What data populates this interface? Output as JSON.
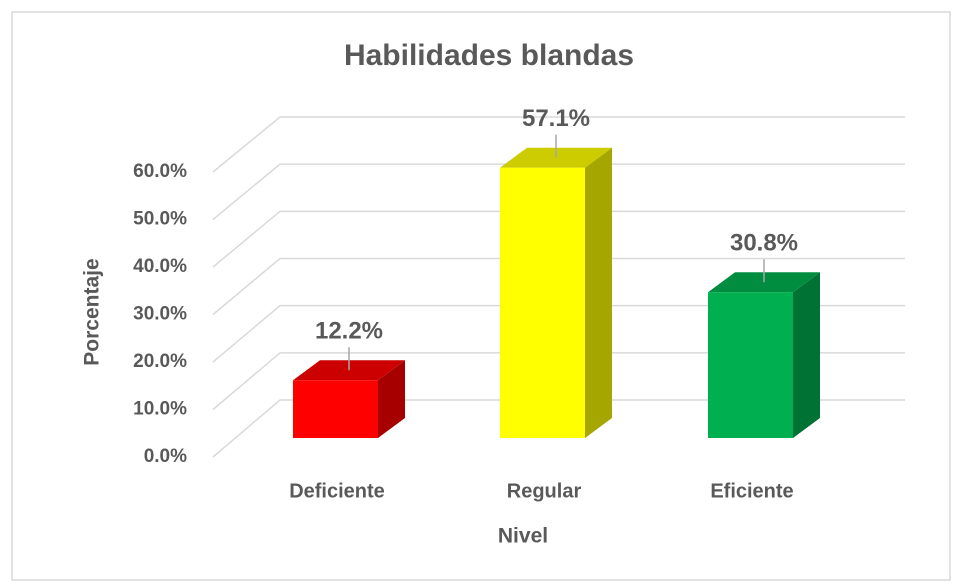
{
  "chart_data": {
    "type": "bar3d",
    "title": "Habilidades blandas",
    "x_label": "Nivel",
    "y_label": "Porcentaje",
    "categories": [
      "Deficiente",
      "Regular",
      "Eficiente"
    ],
    "values": [
      12.2,
      57.1,
      30.8
    ],
    "value_labels": [
      "12.2%",
      "57.1%",
      "30.8%"
    ],
    "colors": [
      "#ff0000",
      "#ffff00",
      "#00b050"
    ],
    "ylim": [
      0,
      60
    ],
    "yticks": [
      {
        "value": 0,
        "label": "0.0%"
      },
      {
        "value": 10,
        "label": "10.0%"
      },
      {
        "value": 20,
        "label": "20.0%"
      },
      {
        "value": 30,
        "label": "30.0%"
      },
      {
        "value": 40,
        "label": "40.0%"
      },
      {
        "value": 50,
        "label": "50.0%"
      },
      {
        "value": 60,
        "label": "60.0%"
      }
    ],
    "grid": true
  }
}
